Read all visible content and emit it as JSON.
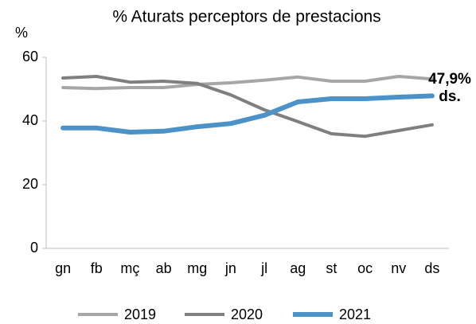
{
  "chart_data": {
    "type": "line",
    "title": "% Aturats perceptors de prestacions",
    "y_label": "%",
    "categories": [
      "gn",
      "fb",
      "mç",
      "ab",
      "mg",
      "jn",
      "jl",
      "ag",
      "st",
      "oc",
      "nv",
      "ds"
    ],
    "series": [
      {
        "name": "2019",
        "color": "#a6a6a6",
        "values": [
          50.5,
          50.2,
          50.5,
          50.5,
          51.5,
          52,
          52.8,
          53.8,
          52.5,
          52.5,
          54,
          53.2
        ]
      },
      {
        "name": "2020",
        "color": "#7f7f7f",
        "values": [
          53.5,
          54,
          52.2,
          52.5,
          51.8,
          48.2,
          43.5,
          39.8,
          36,
          35.2,
          37,
          38.8
        ]
      },
      {
        "name": "2021",
        "color": "#4b92c8",
        "values": [
          37.8,
          37.8,
          36.5,
          36.8,
          38.2,
          39.2,
          41.8,
          46,
          47,
          47,
          47.5,
          47.9
        ]
      }
    ],
    "ylim": [
      0,
      60
    ],
    "yticks": [
      0,
      20,
      40,
      60
    ],
    "annotations": [
      "47,9%",
      "ds."
    ],
    "annotation_color": "#4b92c8",
    "legend": "bottom"
  }
}
